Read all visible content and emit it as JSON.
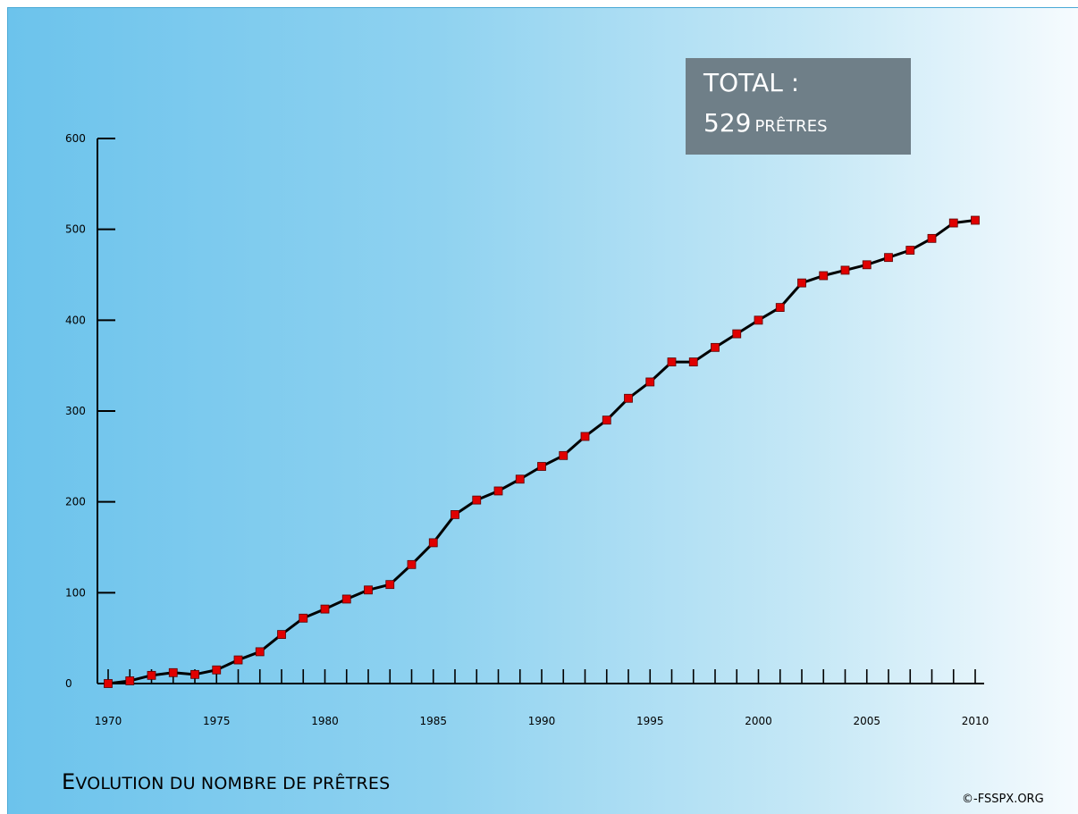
{
  "total_box": {
    "label": "TOTAL :",
    "number": "529",
    "unit": "PRÊTRES"
  },
  "chart_title": {
    "first_letter": "E",
    "rest": "volution du nombre de prêtres"
  },
  "copyright": "©-FSSPX.ORG",
  "colors": {
    "line": "#000000",
    "marker": "#e00000",
    "box": "#6f7f88",
    "background_left": "#6cc3ec",
    "background_right": "#f6fbfe"
  },
  "chart_data": {
    "type": "line",
    "title": "Evolution du nombre de prêtres",
    "xlabel": "",
    "ylabel": "",
    "xlim": [
      1970,
      2010
    ],
    "ylim": [
      0,
      600
    ],
    "x_ticks": [
      1970,
      1975,
      1980,
      1985,
      1990,
      1995,
      2000,
      2005,
      2010
    ],
    "y_ticks": [
      0,
      100,
      200,
      300,
      400,
      500,
      600
    ],
    "grid": false,
    "x": [
      1970,
      1971,
      1972,
      1973,
      1974,
      1975,
      1976,
      1977,
      1978,
      1979,
      1980,
      1981,
      1982,
      1983,
      1984,
      1985,
      1986,
      1987,
      1988,
      1989,
      1990,
      1991,
      1992,
      1993,
      1994,
      1995,
      1996,
      1997,
      1998,
      1999,
      2000,
      2001,
      2002,
      2003,
      2004,
      2005,
      2006,
      2007,
      2008,
      2009,
      2010
    ],
    "series": [
      {
        "values": [
          0,
          3,
          9,
          12,
          10,
          15,
          26,
          35,
          54,
          72,
          82,
          93,
          103,
          109,
          131,
          155,
          186,
          202,
          212,
          225,
          239,
          251,
          272,
          290,
          314,
          332,
          354,
          354,
          370,
          385,
          400,
          414,
          441,
          449,
          455,
          461,
          469,
          477,
          490,
          507,
          510
        ]
      }
    ]
  }
}
